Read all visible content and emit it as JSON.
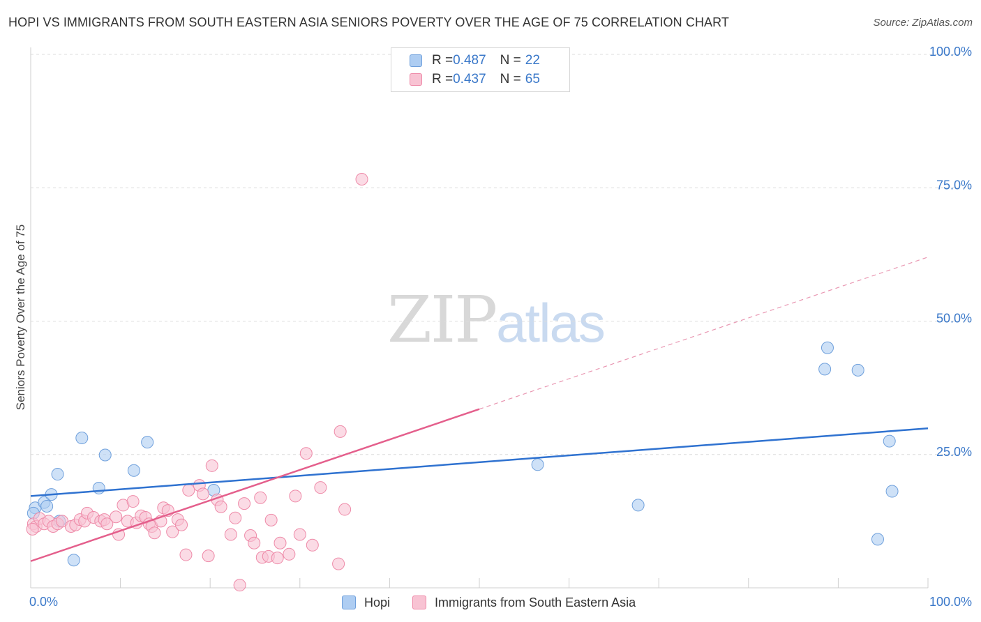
{
  "title": "HOPI VS IMMIGRANTS FROM SOUTH EASTERN ASIA SENIORS POVERTY OVER THE AGE OF 75 CORRELATION CHART",
  "source": "Source: ZipAtlas.com",
  "watermark": {
    "zip": "ZIP",
    "atlas": "atlas"
  },
  "legend_top": {
    "rows": [
      {
        "r_label": "R = ",
        "r_value": "0.487",
        "n_label": "N = ",
        "n_value": "22",
        "color": "#aecdf2",
        "border": "#6fa0dc"
      },
      {
        "r_label": "R = ",
        "r_value": "0.437",
        "n_label": "N = ",
        "n_value": "65",
        "color": "#f8c3d3",
        "border": "#ee8aa8"
      }
    ]
  },
  "legend_bottom": {
    "items": [
      {
        "label": "Hopi",
        "color": "#aecdf2",
        "border": "#6fa0dc"
      },
      {
        "label": "Immigrants from South Eastern Asia",
        "color": "#f8c3d3",
        "border": "#ee8aa8"
      }
    ]
  },
  "chart_data": {
    "type": "scatter",
    "title": "HOPI VS IMMIGRANTS FROM SOUTH EASTERN ASIA SENIORS POVERTY OVER THE AGE OF 75 CORRELATION CHART",
    "xlabel": "",
    "ylabel": "Seniors Poverty Over the Age of 75",
    "xlim": [
      0,
      100
    ],
    "ylim": [
      0,
      100
    ],
    "x_tick_labels": [
      "0.0%",
      "100.0%"
    ],
    "y_ticks": [
      25,
      50,
      75,
      100
    ],
    "y_tick_labels": [
      "25.0%",
      "50.0%",
      "75.0%",
      "100.0%"
    ],
    "grid": true,
    "series": [
      {
        "name": "Hopi",
        "color": "#6fa0dc",
        "fill": "#aecdf2",
        "points": [
          {
            "x": 0.5,
            "y": 15.0
          },
          {
            "x": 1.5,
            "y": 16.0
          },
          {
            "x": 1.8,
            "y": 15.3
          },
          {
            "x": 2.3,
            "y": 17.5
          },
          {
            "x": 3.0,
            "y": 21.3
          },
          {
            "x": 3.2,
            "y": 12.5
          },
          {
            "x": 4.8,
            "y": 5.2
          },
          {
            "x": 5.7,
            "y": 28.1
          },
          {
            "x": 7.6,
            "y": 18.7
          },
          {
            "x": 8.3,
            "y": 24.9
          },
          {
            "x": 11.5,
            "y": 22.0
          },
          {
            "x": 13.0,
            "y": 27.3
          },
          {
            "x": 20.4,
            "y": 18.3
          },
          {
            "x": 56.5,
            "y": 23.1
          },
          {
            "x": 67.7,
            "y": 15.5
          },
          {
            "x": 88.5,
            "y": 41.0
          },
          {
            "x": 88.8,
            "y": 45.0
          },
          {
            "x": 92.2,
            "y": 40.8
          },
          {
            "x": 94.4,
            "y": 9.1
          },
          {
            "x": 95.7,
            "y": 27.5
          },
          {
            "x": 96.0,
            "y": 18.1
          },
          {
            "x": 0.3,
            "y": 14.0
          }
        ],
        "trend": {
          "x0": 0,
          "y0": 17.2,
          "x1": 100,
          "y1": 29.9
        }
      },
      {
        "name": "Immigrants from South Eastern Asia",
        "color": "#ee8aa8",
        "fill": "#f8c3d3",
        "points": [
          {
            "x": 0.3,
            "y": 12.0
          },
          {
            "x": 0.6,
            "y": 11.5
          },
          {
            "x": 1.0,
            "y": 13.0
          },
          {
            "x": 1.5,
            "y": 12.0
          },
          {
            "x": 2.0,
            "y": 12.5
          },
          {
            "x": 2.5,
            "y": 11.5
          },
          {
            "x": 3.0,
            "y": 12.0
          },
          {
            "x": 3.5,
            "y": 12.5
          },
          {
            "x": 4.5,
            "y": 11.5
          },
          {
            "x": 5.0,
            "y": 11.8
          },
          {
            "x": 5.5,
            "y": 12.8
          },
          {
            "x": 6.0,
            "y": 12.5
          },
          {
            "x": 6.3,
            "y": 14.0
          },
          {
            "x": 7.0,
            "y": 13.2
          },
          {
            "x": 7.8,
            "y": 12.5
          },
          {
            "x": 8.2,
            "y": 12.8
          },
          {
            "x": 8.5,
            "y": 12.0
          },
          {
            "x": 9.5,
            "y": 13.3
          },
          {
            "x": 9.8,
            "y": 10.0
          },
          {
            "x": 10.3,
            "y": 15.5
          },
          {
            "x": 10.8,
            "y": 12.5
          },
          {
            "x": 11.4,
            "y": 16.2
          },
          {
            "x": 11.8,
            "y": 12.2
          },
          {
            "x": 12.3,
            "y": 13.5
          },
          {
            "x": 12.8,
            "y": 13.2
          },
          {
            "x": 13.2,
            "y": 12.0
          },
          {
            "x": 13.5,
            "y": 11.5
          },
          {
            "x": 13.8,
            "y": 10.3
          },
          {
            "x": 14.5,
            "y": 12.5
          },
          {
            "x": 14.8,
            "y": 15.0
          },
          {
            "x": 15.3,
            "y": 14.5
          },
          {
            "x": 15.8,
            "y": 10.5
          },
          {
            "x": 16.4,
            "y": 12.8
          },
          {
            "x": 16.8,
            "y": 11.8
          },
          {
            "x": 17.3,
            "y": 6.2
          },
          {
            "x": 17.6,
            "y": 18.3
          },
          {
            "x": 18.8,
            "y": 19.2
          },
          {
            "x": 19.2,
            "y": 17.6
          },
          {
            "x": 19.8,
            "y": 6.0
          },
          {
            "x": 20.2,
            "y": 22.9
          },
          {
            "x": 20.8,
            "y": 16.5
          },
          {
            "x": 21.2,
            "y": 15.2
          },
          {
            "x": 22.3,
            "y": 10.0
          },
          {
            "x": 22.8,
            "y": 13.1
          },
          {
            "x": 23.3,
            "y": 0.5
          },
          {
            "x": 23.8,
            "y": 15.8
          },
          {
            "x": 24.5,
            "y": 9.8
          },
          {
            "x": 24.9,
            "y": 8.4
          },
          {
            "x": 25.6,
            "y": 16.9
          },
          {
            "x": 25.8,
            "y": 5.7
          },
          {
            "x": 26.5,
            "y": 5.9
          },
          {
            "x": 26.8,
            "y": 12.7
          },
          {
            "x": 27.5,
            "y": 5.6
          },
          {
            "x": 27.8,
            "y": 8.4
          },
          {
            "x": 28.8,
            "y": 6.3
          },
          {
            "x": 29.5,
            "y": 17.2
          },
          {
            "x": 30.0,
            "y": 10.0
          },
          {
            "x": 30.7,
            "y": 25.2
          },
          {
            "x": 31.4,
            "y": 8.0
          },
          {
            "x": 32.3,
            "y": 18.8
          },
          {
            "x": 34.3,
            "y": 4.5
          },
          {
            "x": 34.5,
            "y": 29.3
          },
          {
            "x": 35.0,
            "y": 14.7
          },
          {
            "x": 36.9,
            "y": 76.6
          },
          {
            "x": 0.2,
            "y": 11.0
          }
        ],
        "trend": {
          "x0": 0,
          "y0": 5.0,
          "x1": 50,
          "y1": 33.5
        },
        "trend_extension": {
          "x0": 50,
          "y0": 33.5,
          "x1": 100,
          "y1": 62.0
        }
      }
    ]
  }
}
